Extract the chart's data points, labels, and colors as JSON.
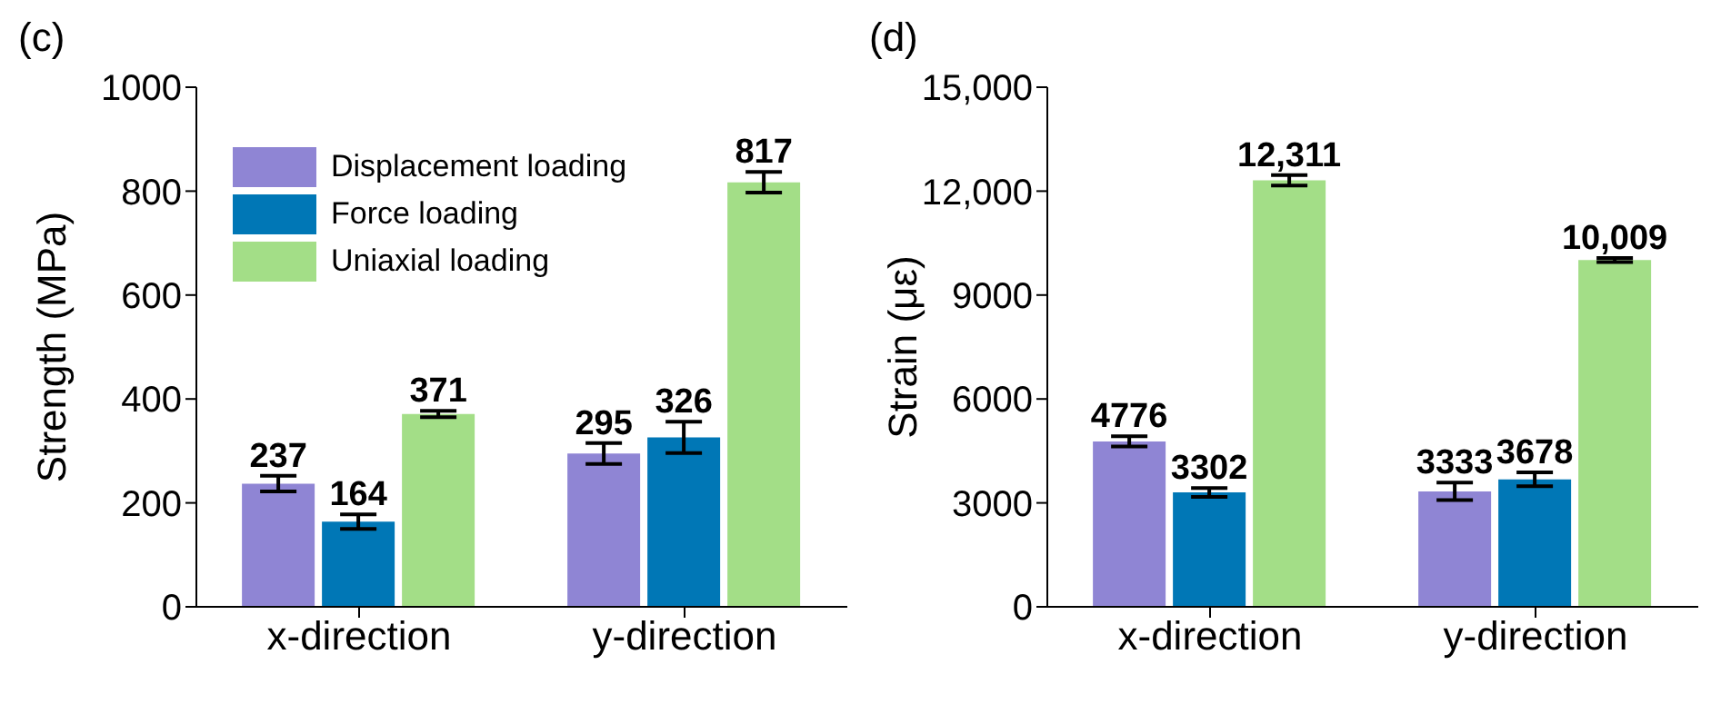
{
  "chart_data": [
    {
      "type": "bar",
      "title": "(c)",
      "ylabel": "Strength (MPa)",
      "categories": [
        "x-direction",
        "y-direction"
      ],
      "ylim": [
        0,
        1000
      ],
      "yticks": [
        0,
        200,
        400,
        600,
        800,
        1000
      ],
      "grid": false,
      "legend": "top left",
      "data_labels": true,
      "series": [
        {
          "name": "Displacement loading",
          "color": "#8f85d4",
          "values": [
            237,
            295
          ],
          "errors": [
            15,
            20
          ]
        },
        {
          "name": "Force loading",
          "color": "#0077b6",
          "values": [
            164,
            326
          ],
          "errors": [
            14,
            30
          ]
        },
        {
          "name": "Uniaxial loading",
          "color": "#a3de87",
          "values": [
            371,
            817
          ],
          "errors": [
            6,
            20
          ]
        }
      ]
    },
    {
      "type": "bar",
      "title": "(d)",
      "ylabel": "Strain (με)",
      "categories": [
        "x-direction",
        "y-direction"
      ],
      "ylim": [
        0,
        15000
      ],
      "yticks": [
        0,
        3000,
        6000,
        9000,
        {
          "value": 12000,
          "label": "12,000"
        },
        {
          "value": 15000,
          "label": "15,000"
        }
      ],
      "grid": false,
      "series": [
        {
          "color": "#8f85d4",
          "values": [
            4776,
            3333
          ],
          "errors": [
            150,
            250
          ],
          "value_labels": [
            "4776",
            "3333"
          ]
        },
        {
          "color": "#0077b6",
          "values": [
            3302,
            3678
          ],
          "errors": [
            130,
            200
          ],
          "value_labels": [
            "3302",
            "3678"
          ]
        },
        {
          "color": "#a3de87",
          "values": [
            12311,
            10009
          ],
          "errors": [
            150,
            60
          ],
          "value_labels": [
            "12,311",
            "10,009"
          ]
        }
      ]
    }
  ]
}
